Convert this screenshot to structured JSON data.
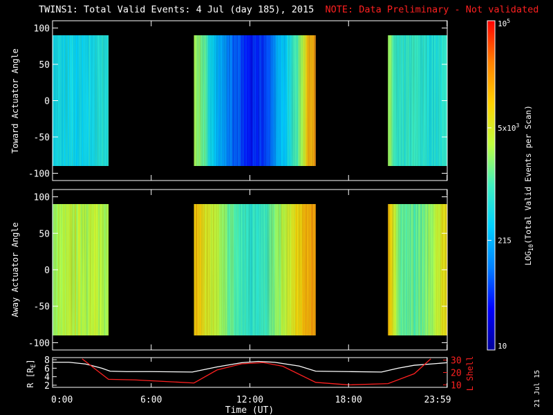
{
  "title": {
    "main": "TWINS1: Total Valid Events:  4 Jul (day 185), 2015",
    "note": "NOTE: Data Preliminary - Not validated"
  },
  "datestamp": "21 Jul 15",
  "colors": {
    "background": "#000000",
    "axes": "#ffffff",
    "note": "#ff2020",
    "lshell": "#ff2020",
    "r_line": "#ffffff"
  },
  "colorbar": {
    "label": "LOG",
    "label_sub": "10",
    "label_rest": "(Total Valid Events per Scan)",
    "scale": "log",
    "range": [
      10,
      100000
    ],
    "ticks": [
      {
        "base": "10",
        "exp": "",
        "value": 10
      },
      {
        "base": "215",
        "exp": "",
        "value": 215
      },
      {
        "base": "5x10",
        "exp": "3",
        "value": 5000
      },
      {
        "base": "10",
        "exp": "5",
        "value": 100000
      }
    ],
    "colormap": [
      "#000099",
      "#0000ff",
      "#0080ff",
      "#00d0ff",
      "#40f0c0",
      "#c0ff40",
      "#ffd000",
      "#ff8000",
      "#ff0000"
    ]
  },
  "chart_data": [
    {
      "type": "heatmap",
      "ylabel": "Toward Actuator Angle",
      "yticks": [
        -100,
        -50,
        0,
        50,
        100
      ],
      "ylim": [
        -110,
        110
      ],
      "xlim": [
        0,
        24
      ],
      "data_range": [
        -90,
        90
      ],
      "coverage": [
        {
          "start": 0.0,
          "end": 3.4,
          "level": 0.42
        },
        {
          "start": 8.6,
          "end": 16.0,
          "level": 0.45
        },
        {
          "start": 20.4,
          "end": 24.0,
          "level": 0.5
        }
      ],
      "profile": [
        {
          "t": 0.0,
          "v": 0.42
        },
        {
          "t": 1.5,
          "v": 0.4
        },
        {
          "t": 3.4,
          "v": 0.45
        },
        {
          "t": 8.6,
          "v": 0.62
        },
        {
          "t": 9.0,
          "v": 0.58
        },
        {
          "t": 10.0,
          "v": 0.33
        },
        {
          "t": 11.0,
          "v": 0.22
        },
        {
          "t": 12.0,
          "v": 0.12
        },
        {
          "t": 13.0,
          "v": 0.18
        },
        {
          "t": 14.0,
          "v": 0.36
        },
        {
          "t": 15.0,
          "v": 0.55
        },
        {
          "t": 15.6,
          "v": 0.82
        },
        {
          "t": 16.0,
          "v": 0.84
        },
        {
          "t": 20.4,
          "v": 0.6
        },
        {
          "t": 21.0,
          "v": 0.45
        },
        {
          "t": 22.0,
          "v": 0.48
        },
        {
          "t": 23.0,
          "v": 0.44
        },
        {
          "t": 24.0,
          "v": 0.46
        }
      ]
    },
    {
      "type": "heatmap",
      "ylabel": "Away Actuator Angle",
      "yticks": [
        -100,
        -50,
        0,
        50,
        100
      ],
      "ylim": [
        -110,
        110
      ],
      "xlim": [
        0,
        24
      ],
      "data_range": [
        -90,
        90
      ],
      "coverage": [
        {
          "start": 0.0,
          "end": 3.4,
          "level": 0.62
        },
        {
          "start": 8.6,
          "end": 16.0,
          "level": 0.55
        },
        {
          "start": 20.4,
          "end": 24.0,
          "level": 0.6
        }
      ],
      "profile": [
        {
          "t": 0.0,
          "v": 0.6
        },
        {
          "t": 1.5,
          "v": 0.63
        },
        {
          "t": 3.4,
          "v": 0.62
        },
        {
          "t": 8.6,
          "v": 0.8
        },
        {
          "t": 9.0,
          "v": 0.74
        },
        {
          "t": 10.0,
          "v": 0.62
        },
        {
          "t": 11.0,
          "v": 0.52
        },
        {
          "t": 12.0,
          "v": 0.46
        },
        {
          "t": 13.0,
          "v": 0.5
        },
        {
          "t": 14.0,
          "v": 0.62
        },
        {
          "t": 15.0,
          "v": 0.74
        },
        {
          "t": 15.6,
          "v": 0.82
        },
        {
          "t": 16.0,
          "v": 0.84
        },
        {
          "t": 20.4,
          "v": 0.82
        },
        {
          "t": 21.0,
          "v": 0.55
        },
        {
          "t": 22.0,
          "v": 0.52
        },
        {
          "t": 23.0,
          "v": 0.58
        },
        {
          "t": 24.0,
          "v": 0.75
        }
      ]
    },
    {
      "type": "line",
      "xlabel": "Time (UT)",
      "xticks": [
        {
          "value": 0,
          "label": "0:00"
        },
        {
          "value": 6,
          "label": "6:00"
        },
        {
          "value": 12,
          "label": "12:00"
        },
        {
          "value": 18,
          "label": "18:00"
        },
        {
          "value": 23.983,
          "label": "23:59"
        }
      ],
      "xlim": [
        0,
        24
      ],
      "ylabel_left": "R [R",
      "ylabel_left_sub": "E",
      "ylabel_left_end": "]",
      "yticks_left": [
        2,
        4,
        6,
        8
      ],
      "ylim_left": [
        1.5,
        8.5
      ],
      "ylabel_right": "L Shell",
      "yticks_right": [
        10,
        20,
        30
      ],
      "ylim_right": [
        8,
        32
      ],
      "series": [
        {
          "name": "R",
          "axis": "left",
          "x": [
            0,
            1.0,
            2.0,
            3.0,
            3.5,
            4.5,
            6,
            8.5,
            10.0,
            11.5,
            12.5,
            13.5,
            15.0,
            16.0,
            18,
            20.0,
            21.0,
            22.0,
            23.0,
            24.0
          ],
          "y": [
            7.4,
            7.4,
            7.0,
            6.0,
            5.3,
            5.2,
            5.2,
            5.1,
            6.3,
            7.3,
            7.6,
            7.4,
            6.5,
            5.3,
            5.2,
            5.1,
            6.0,
            6.7,
            7.0,
            7.3
          ]
        },
        {
          "name": "L Shell",
          "axis": "right",
          "x": [
            1.8,
            3.4,
            5.0,
            8.6,
            10.0,
            11.5,
            12.8,
            14.0,
            16.0,
            18.0,
            20.4,
            22.0,
            23.0
          ],
          "y": [
            31,
            14.5,
            14,
            11.5,
            22,
            27,
            28,
            25,
            12,
            10,
            11,
            19,
            31
          ]
        }
      ]
    }
  ]
}
